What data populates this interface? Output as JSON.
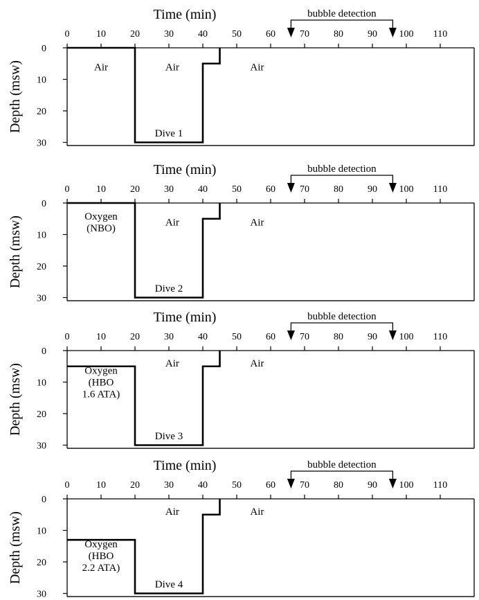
{
  "chart_data": [
    {
      "type": "line",
      "xlabel": "Time (min)",
      "ylabel": "Depth (msw)",
      "xticks": [
        0,
        10,
        20,
        30,
        40,
        50,
        60,
        70,
        80,
        90,
        100,
        110
      ],
      "yticks": [
        0,
        10,
        20,
        30
      ],
      "xlim": [
        0,
        120
      ],
      "ylim": [
        0,
        31
      ],
      "profile": [
        [
          0,
          0
        ],
        [
          20,
          0
        ],
        [
          20,
          30
        ],
        [
          40,
          30
        ],
        [
          40,
          5
        ],
        [
          45,
          5
        ],
        [
          45,
          0
        ]
      ],
      "bubble_detection": {
        "label": "bubble detection",
        "start": 66,
        "end": 96
      },
      "annotations": [
        {
          "text": [
            "Air"
          ],
          "x": 10,
          "y": 6
        },
        {
          "text": [
            "Air"
          ],
          "x": 31,
          "y": 6
        },
        {
          "text": [
            "Air"
          ],
          "x": 56,
          "y": 6
        },
        {
          "text": [
            "Dive 1"
          ],
          "x": 30,
          "y": 27
        }
      ]
    },
    {
      "type": "line",
      "xlabel": "Time (min)",
      "ylabel": "Depth (msw)",
      "xticks": [
        0,
        10,
        20,
        30,
        40,
        50,
        60,
        70,
        80,
        90,
        100,
        110
      ],
      "yticks": [
        0,
        10,
        20,
        30
      ],
      "xlim": [
        0,
        120
      ],
      "ylim": [
        0,
        31
      ],
      "profile": [
        [
          0,
          0
        ],
        [
          20,
          0
        ],
        [
          20,
          30
        ],
        [
          40,
          30
        ],
        [
          40,
          5
        ],
        [
          45,
          5
        ],
        [
          45,
          0
        ]
      ],
      "bubble_detection": {
        "label": "bubble detection",
        "start": 66,
        "end": 96
      },
      "annotations": [
        {
          "text": [
            "Oxygen",
            "(NBO)"
          ],
          "x": 10,
          "y": 6
        },
        {
          "text": [
            "Air"
          ],
          "x": 31,
          "y": 6
        },
        {
          "text": [
            "Air"
          ],
          "x": 56,
          "y": 6
        },
        {
          "text": [
            "Dive 2"
          ],
          "x": 30,
          "y": 27
        }
      ]
    },
    {
      "type": "line",
      "xlabel": "Time (min)",
      "ylabel": "Depth (msw)",
      "xticks": [
        0,
        10,
        20,
        30,
        40,
        50,
        60,
        70,
        80,
        90,
        100,
        110
      ],
      "yticks": [
        0,
        10,
        20,
        30
      ],
      "xlim": [
        0,
        120
      ],
      "ylim": [
        0,
        31
      ],
      "profile": [
        [
          0,
          5
        ],
        [
          20,
          5
        ],
        [
          20,
          30
        ],
        [
          40,
          30
        ],
        [
          40,
          5
        ],
        [
          45,
          5
        ],
        [
          45,
          0
        ]
      ],
      "bubble_detection": {
        "label": "bubble detection",
        "start": 66,
        "end": 96
      },
      "annotations": [
        {
          "text": [
            "Air"
          ],
          "x": 31,
          "y": 4
        },
        {
          "text": [
            "Air"
          ],
          "x": 56,
          "y": 4
        },
        {
          "text": [
            "Oxygen",
            "(HBO",
            "1.6 ATA)"
          ],
          "x": 10,
          "y": 10
        },
        {
          "text": [
            "Dive 3"
          ],
          "x": 30,
          "y": 27
        }
      ]
    },
    {
      "type": "line",
      "xlabel": "Time (min)",
      "ylabel": "Depth (msw)",
      "xticks": [
        0,
        10,
        20,
        30,
        40,
        50,
        60,
        70,
        80,
        90,
        100,
        110
      ],
      "yticks": [
        0,
        10,
        20,
        30
      ],
      "xlim": [
        0,
        120
      ],
      "ylim": [
        0,
        31
      ],
      "profile": [
        [
          0,
          13
        ],
        [
          20,
          13
        ],
        [
          20,
          30
        ],
        [
          40,
          30
        ],
        [
          40,
          5
        ],
        [
          45,
          5
        ],
        [
          45,
          0
        ]
      ],
      "bubble_detection": {
        "label": "bubble detection",
        "start": 66,
        "end": 96
      },
      "annotations": [
        {
          "text": [
            "Air"
          ],
          "x": 31,
          "y": 4
        },
        {
          "text": [
            "Air"
          ],
          "x": 56,
          "y": 4
        },
        {
          "text": [
            "Oxygen",
            "(HBO",
            "2.2 ATA)"
          ],
          "x": 10,
          "y": 18
        },
        {
          "text": [
            "Dive 4"
          ],
          "x": 30,
          "y": 27
        }
      ]
    }
  ]
}
